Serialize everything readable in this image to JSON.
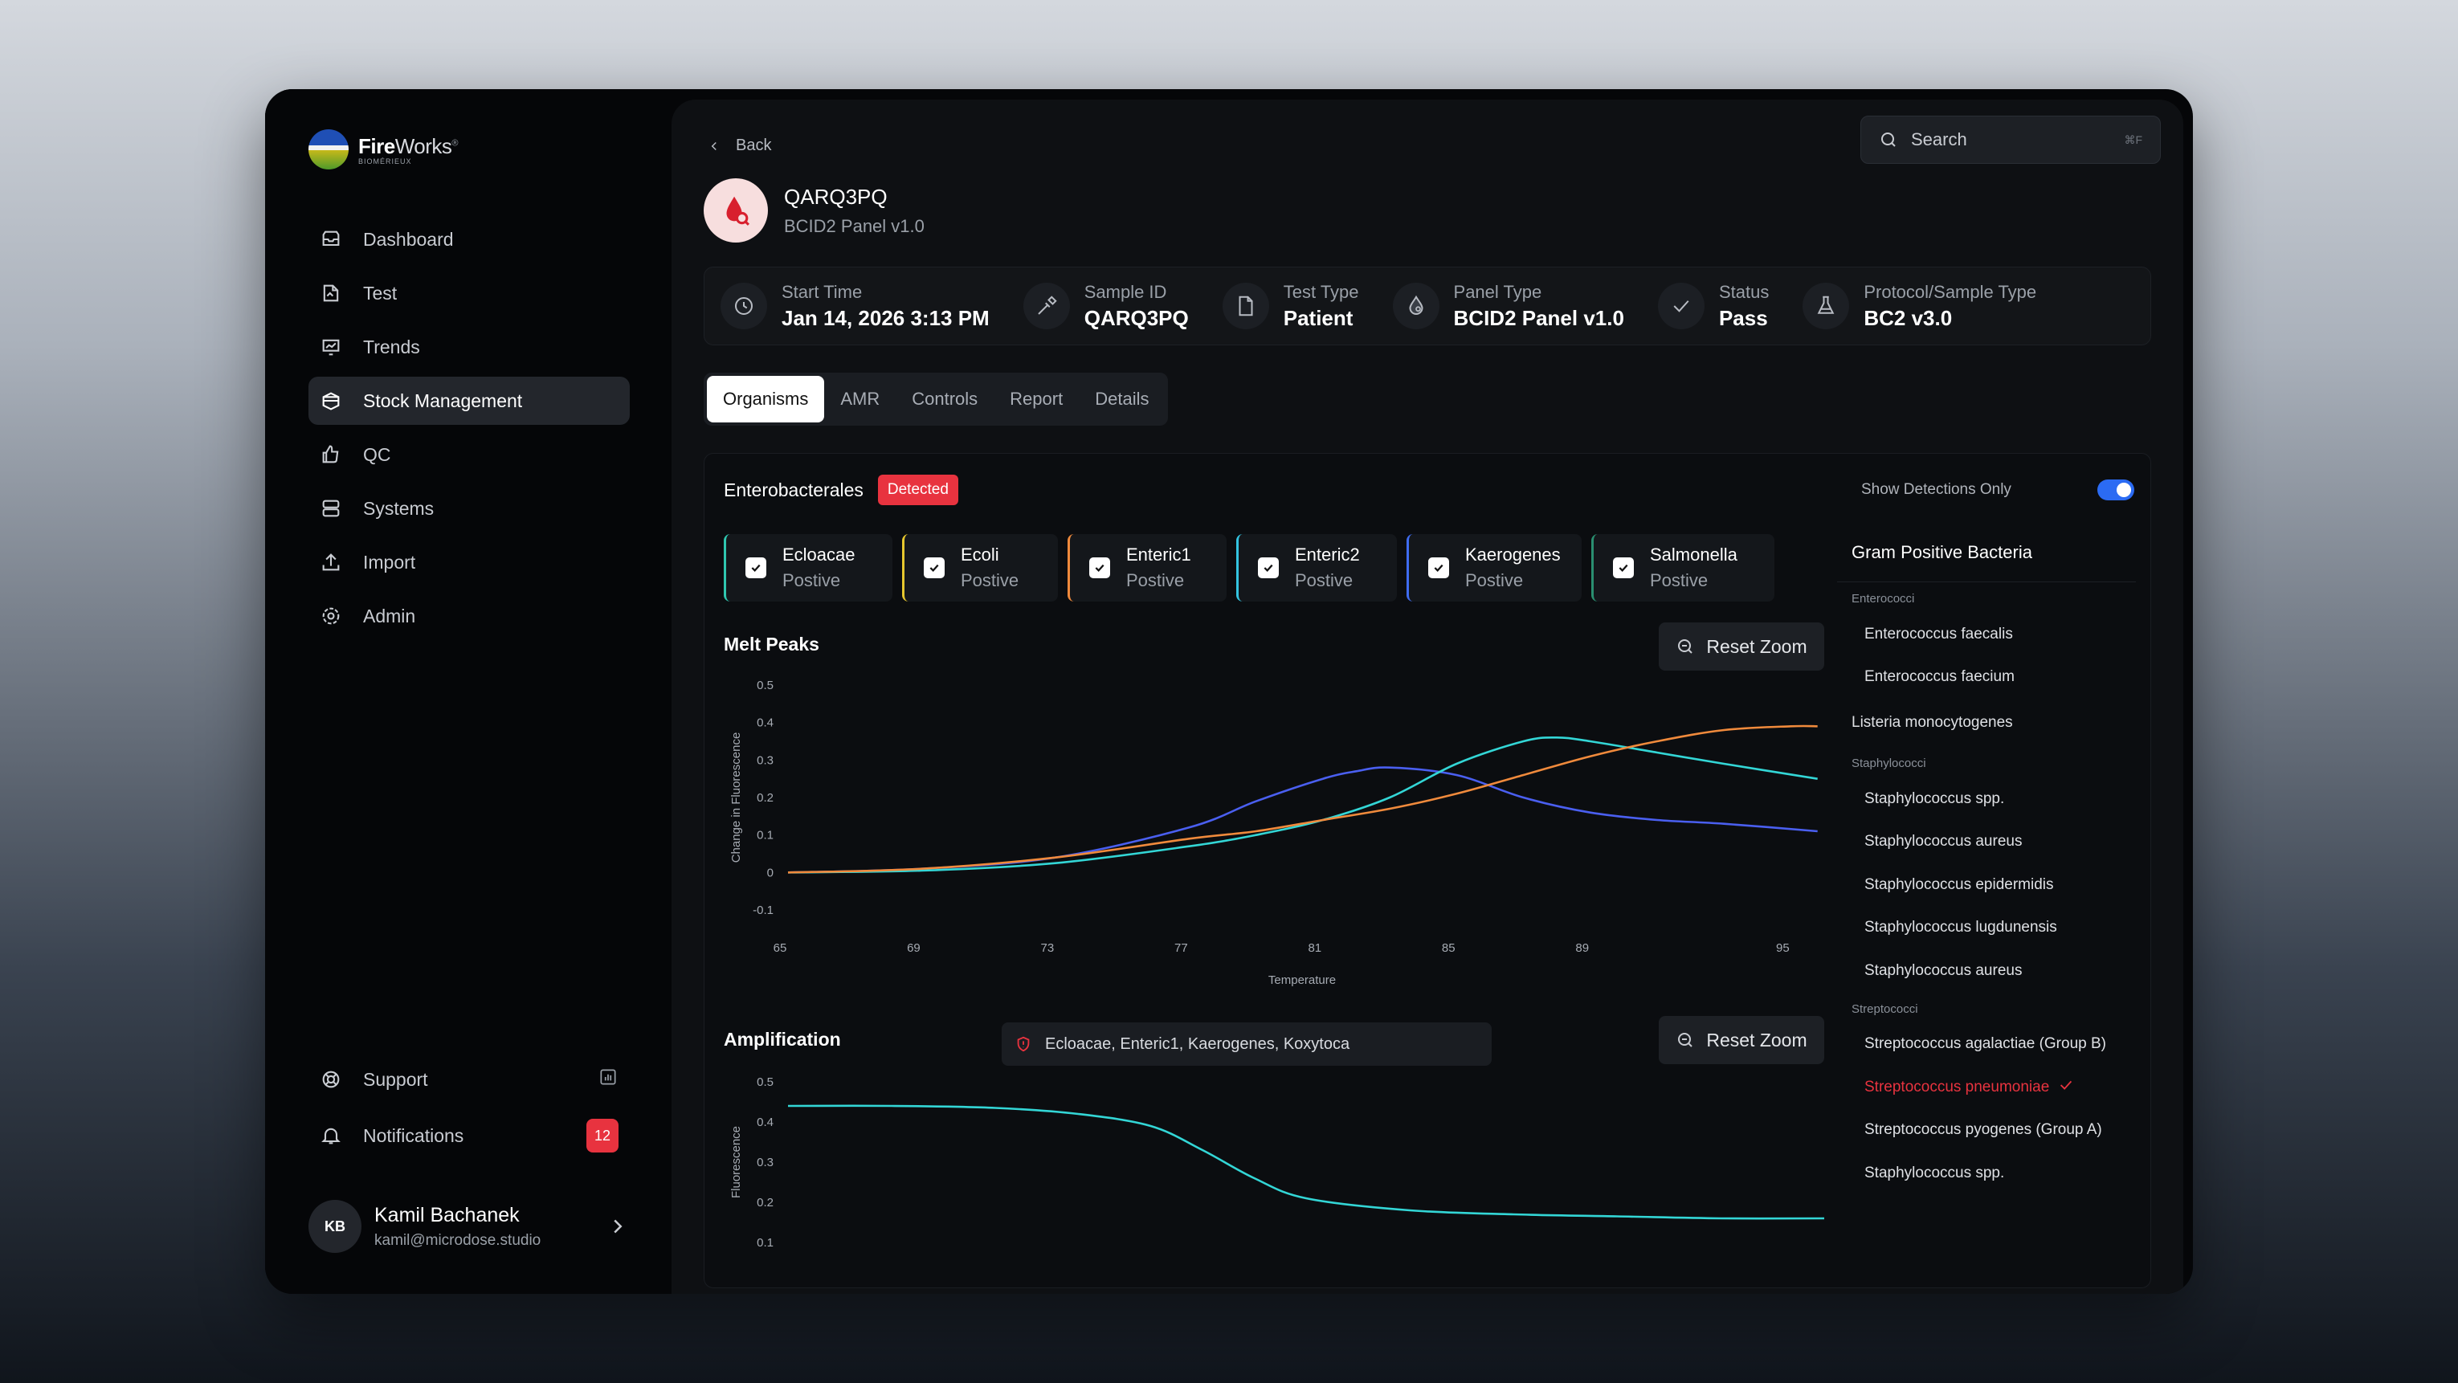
{
  "brand": {
    "name_bold": "Fire",
    "name_light": "Works",
    "mark": "®",
    "sub": "BIOMÉRIEUX",
    "logo_text": "BIOMÉRIEUX"
  },
  "sidebar": {
    "items": [
      {
        "label": "Dashboard",
        "icon": "inbox-icon"
      },
      {
        "label": "Test",
        "icon": "test-icon"
      },
      {
        "label": "Trends",
        "icon": "chart-icon"
      },
      {
        "label": "Stock Management",
        "icon": "stock-icon",
        "active": true
      },
      {
        "label": "QC",
        "icon": "thumbs-up-icon"
      },
      {
        "label": "Systems",
        "icon": "server-icon"
      },
      {
        "label": "Import",
        "icon": "upload-icon"
      },
      {
        "label": "Admin",
        "icon": "gear-icon"
      }
    ],
    "bottom": [
      {
        "label": "Support",
        "icon": "lifebuoy-icon"
      },
      {
        "label": "Notifications",
        "icon": "bell-icon",
        "count": "12"
      }
    ]
  },
  "user": {
    "initials": "KB",
    "name": "Kamil Bachanek",
    "email": "kamil@microdose.studio"
  },
  "nav": {
    "back": "Back"
  },
  "search": {
    "placeholder": "Search",
    "shortcut": "⌘F"
  },
  "sample": {
    "title": "QARQ3PQ",
    "subtitle": "BCID2 Panel v1.0"
  },
  "info": [
    {
      "label": "Start Time",
      "value": "Jan 14, 2026 3:13 PM",
      "icon": "clock-icon"
    },
    {
      "label": "Sample ID",
      "value": "QARQ3PQ",
      "icon": "pipette-icon"
    },
    {
      "label": "Test Type",
      "value": "Patient",
      "icon": "document-icon"
    },
    {
      "label": "Panel Type",
      "value": "BCID2 Panel v1.0",
      "icon": "drop-icon"
    },
    {
      "label": "Status",
      "value": "Pass",
      "icon": "check-icon"
    },
    {
      "label": "Protocol/Sample Type",
      "value": "BC2 v3.0",
      "icon": "flask-icon"
    }
  ],
  "tabs": [
    "Organisms",
    "AMR",
    "Controls",
    "Report",
    "Details"
  ],
  "organisms": {
    "group": "Enterobacterales",
    "badge": "Detected",
    "toggle_label": "Show Detections Only",
    "toggle_on": true,
    "cards": [
      {
        "name": "Ecloacae",
        "status": "Postive",
        "color": "#2fc7b0"
      },
      {
        "name": "Ecoli",
        "status": "Postive",
        "color": "#e6c72e"
      },
      {
        "name": "Enteric1",
        "status": "Postive",
        "color": "#f08a3c"
      },
      {
        "name": "Enteric2",
        "status": "Postive",
        "color": "#33c3e0"
      },
      {
        "name": "Kaerogenes",
        "status": "Postive",
        "color": "#3f6cf0"
      },
      {
        "name": "Salmonella",
        "status": "Postive",
        "color": "#2a8f70"
      }
    ]
  },
  "melt": {
    "title": "Melt Peaks",
    "reset": "Reset Zoom"
  },
  "amp": {
    "title": "Amplification",
    "reset": "Reset Zoom",
    "detected": "Ecloacae, Enteric1, Kaerogenes, Koxytoca"
  },
  "chart_data": [
    {
      "type": "line",
      "title": "Melt Peaks",
      "xlabel": "Temperature",
      "ylabel": "Change in Fluorescence",
      "xlim": [
        65,
        96
      ],
      "ylim": [
        -0.1,
        0.5
      ],
      "xticks": [
        65,
        69,
        73,
        77,
        81,
        85,
        89,
        95
      ],
      "yticks": [
        0.5,
        0.4,
        0.3,
        0.2,
        0.1,
        0,
        -0.1
      ],
      "ytick_labels": [
        "0.5",
        "0.4",
        "0.3",
        "0.2",
        "0.1",
        "0",
        "-0.1"
      ],
      "series": [
        {
          "color": "#4a5ff0",
          "x": [
            65,
            69,
            73,
            77,
            79,
            81,
            82,
            83,
            85,
            87,
            89,
            91,
            93,
            95.8
          ],
          "y": [
            0,
            0.01,
            0.04,
            0.12,
            0.19,
            0.25,
            0.27,
            0.28,
            0.26,
            0.2,
            0.16,
            0.14,
            0.13,
            0.11
          ]
        },
        {
          "color": "#33d6d6",
          "x": [
            65,
            69,
            73,
            77,
            79,
            81,
            83,
            85,
            87,
            88,
            89,
            91,
            93,
            95.8
          ],
          "y": [
            0,
            0.005,
            0.025,
            0.07,
            0.1,
            0.14,
            0.2,
            0.29,
            0.35,
            0.36,
            0.35,
            0.32,
            0.29,
            0.25
          ]
        },
        {
          "color": "#f08a3c",
          "x": [
            65,
            69,
            73,
            77,
            79,
            81,
            83,
            85,
            87,
            89,
            91,
            93,
            95,
            95.8
          ],
          "y": [
            0,
            0.01,
            0.04,
            0.09,
            0.11,
            0.14,
            0.17,
            0.21,
            0.26,
            0.31,
            0.35,
            0.38,
            0.39,
            0.39
          ]
        }
      ]
    },
    {
      "type": "line",
      "title": "Amplification",
      "ylabel": "Fluorescence",
      "ylim": [
        0.1,
        0.5
      ],
      "yticks": [
        0.5,
        0.4,
        0.3,
        0.2,
        0.1
      ],
      "ytick_labels": [
        "0.5",
        "0.4",
        "0.3",
        "0.2",
        "0.1"
      ],
      "series": [
        {
          "color": "#33d6d6",
          "x": [
            0,
            10,
            20,
            28,
            35,
            40,
            45,
            50,
            60,
            70,
            80,
            90,
            100
          ],
          "y": [
            0.44,
            0.44,
            0.435,
            0.42,
            0.39,
            0.33,
            0.26,
            0.21,
            0.18,
            0.17,
            0.165,
            0.16,
            0.16
          ]
        }
      ]
    }
  ],
  "gram_positive": {
    "title": "Gram Positive Bacteria",
    "groups": [
      {
        "name": "Enterococci",
        "items": [
          {
            "label": "Enterococcus faecalis"
          },
          {
            "label": "Enterococcus faecium"
          }
        ]
      },
      {
        "name": "",
        "items": [
          {
            "label": "Listeria monocytogenes",
            "top": true
          }
        ]
      },
      {
        "name": "Staphylococci",
        "items": [
          {
            "label": "Staphylococcus spp."
          },
          {
            "label": "Staphylococcus aureus"
          },
          {
            "label": "Staphylococcus epidermidis"
          },
          {
            "label": "Staphylococcus lugdunensis"
          },
          {
            "label": "Staphylococcus aureus"
          }
        ]
      },
      {
        "name": "Streptococci",
        "items": [
          {
            "label": "Streptococcus agalactiae (Group B)"
          },
          {
            "label": "Streptococcus pneumoniae",
            "detected": true
          },
          {
            "label": "Streptococcus pyogenes (Group A)"
          },
          {
            "label": "Staphylococcus spp."
          }
        ]
      }
    ]
  }
}
